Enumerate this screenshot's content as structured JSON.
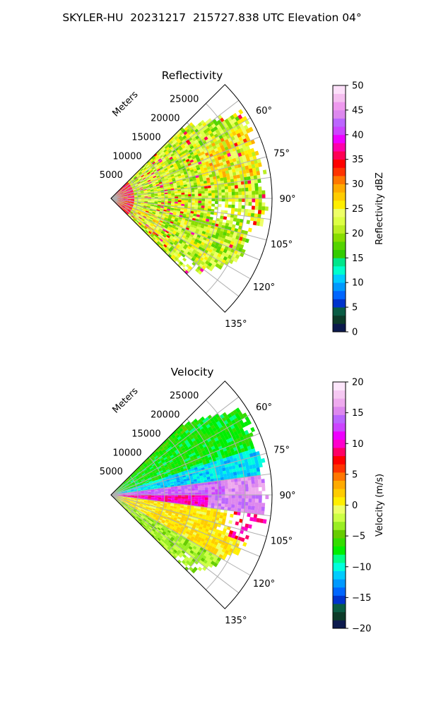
{
  "figure": {
    "title": "SKYLER-HU  20231217  215727.838 UTC Elevation 04°"
  },
  "chart_data": [
    {
      "type": "heatmap",
      "projection": "polar-sector",
      "title": "Reflectivity",
      "radial_axis_label": "Meters",
      "range_tick_labels": [
        "5000",
        "10000",
        "15000",
        "20000",
        "25000"
      ],
      "range_ticks": [
        5000,
        10000,
        15000,
        20000,
        25000
      ],
      "range_max": 30000,
      "azimuth_tick_labels": [
        "60°",
        "75°",
        "90°",
        "105°",
        "120°",
        "135°"
      ],
      "azimuth_ticks": [
        60,
        75,
        90,
        105,
        120,
        135
      ],
      "azimuth_range": [
        45,
        135
      ],
      "grid": true,
      "colorbar": {
        "label": "Reflectivity dBZ",
        "min": 0,
        "max": 50,
        "tick_labels": [
          "0",
          "5",
          "10",
          "15",
          "20",
          "25",
          "30",
          "35",
          "40",
          "45",
          "50"
        ],
        "ticks": [
          0,
          5,
          10,
          15,
          20,
          25,
          30,
          35,
          40,
          45,
          50
        ],
        "colors": [
          "#0c1a4d",
          "#0d3b29",
          "#0a5c44",
          "#0033cc",
          "#0066ff",
          "#0099ff",
          "#00ccff",
          "#00ffcc",
          "#00e68a",
          "#33cc00",
          "#55d400",
          "#88dd00",
          "#bbee22",
          "#ddff44",
          "#eeff66",
          "#ffee00",
          "#ffcc00",
          "#ffaa00",
          "#ff7700",
          "#ff3300",
          "#ff0000",
          "#ff0055",
          "#ff00aa",
          "#ee00ff",
          "#cc44ff",
          "#bb66ff",
          "#dd88ee",
          "#ee99ee",
          "#f5bff0",
          "#fde0fa"
        ]
      },
      "dominant_values_dbz": [
        20,
        30
      ],
      "max_values_dbz": 38
    },
    {
      "type": "heatmap",
      "projection": "polar-sector",
      "title": "Velocity",
      "radial_axis_label": "Meters",
      "range_tick_labels": [
        "5000",
        "10000",
        "15000",
        "20000",
        "25000"
      ],
      "range_ticks": [
        5000,
        10000,
        15000,
        20000,
        25000
      ],
      "range_max": 30000,
      "azimuth_tick_labels": [
        "60°",
        "75°",
        "90°",
        "105°",
        "120°",
        "135°"
      ],
      "azimuth_ticks": [
        60,
        75,
        90,
        105,
        120,
        135
      ],
      "azimuth_range": [
        45,
        135
      ],
      "grid": true,
      "colorbar": {
        "label": "Velocity (m/s)",
        "min": -20,
        "max": 20,
        "tick_labels": [
          "−20",
          "−15",
          "−10",
          "−5",
          "0",
          "5",
          "10",
          "15",
          "20"
        ],
        "ticks": [
          -20,
          -15,
          -10,
          -5,
          0,
          5,
          10,
          15,
          20
        ],
        "colors": [
          "#0c1a4d",
          "#0d3b29",
          "#0a5c44",
          "#0033cc",
          "#0066ff",
          "#0099ff",
          "#00ccff",
          "#00ffdd",
          "#00ff88",
          "#00ee00",
          "#33dd00",
          "#66cc00",
          "#99ee22",
          "#ccff44",
          "#eeff66",
          "#ffee00",
          "#ffcc00",
          "#ffaa00",
          "#ff7700",
          "#ff3300",
          "#ff0000",
          "#ff0066",
          "#ff00cc",
          "#ee00ff",
          "#cc44ff",
          "#bb66ff",
          "#dd88ee",
          "#eeaaee",
          "#f5c8f2",
          "#fde6fb"
        ]
      },
      "bands_by_azimuth": [
        {
          "azimuth": [
            50,
            72
          ],
          "velocity_ms": -7
        },
        {
          "azimuth": [
            72,
            82
          ],
          "velocity_ms": -11
        },
        {
          "azimuth": [
            82,
            90
          ],
          "velocity_ms": 14
        },
        {
          "azimuth": [
            90,
            98
          ],
          "velocity_ms": 10
        },
        {
          "azimuth": [
            98,
            120
          ],
          "velocity_ms": 1
        },
        {
          "azimuth": [
            120,
            135
          ],
          "velocity_ms": -3
        }
      ]
    }
  ]
}
